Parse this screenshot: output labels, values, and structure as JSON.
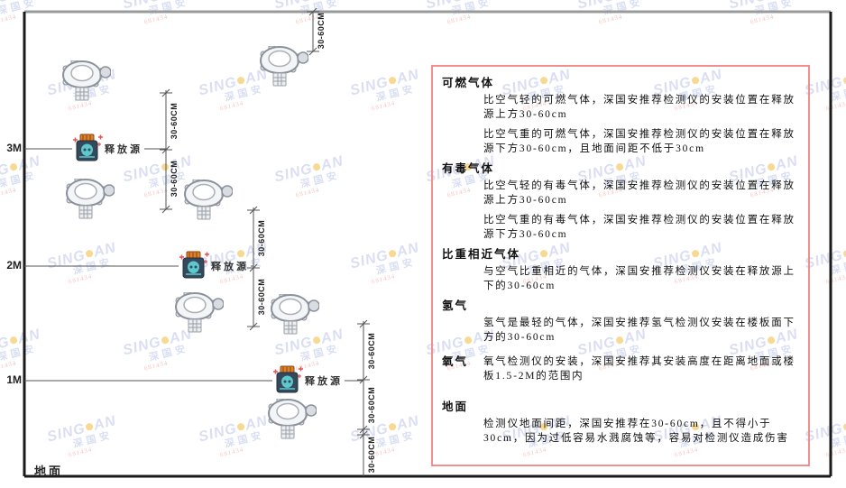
{
  "watermark": {
    "brand_left": "SING",
    "brand_right": "AN",
    "cn": "深国安",
    "code": "681434"
  },
  "diagram": {
    "height_markers": [
      "3M",
      "2M",
      "1M"
    ],
    "ground_label": "地面",
    "release_source_label": "释放源",
    "dimension_label": "30-60CM",
    "colors": {
      "frame": "#1a1a1a",
      "ceiling": "#9a9a9a",
      "thin_line": "#555555",
      "source_body": "#34495c",
      "source_cap": "#df7f2e",
      "source_blob": "#5ec8cc",
      "sparkle": "#e25555",
      "detector_outline": "#8b929c",
      "detector_fill": "#f4f5f7"
    }
  },
  "panel": {
    "border_color": "#f0908e",
    "sections": [
      {
        "heading": "可燃气体",
        "inline": false,
        "paragraphs": [
          "比空气轻的可燃气体，深国安推荐检测仪的安装位置在释放源上方30-60cm",
          "比空气重的可燃气体，深国安推荐检测仪的安装位置在释放源下方30-60cm，且地面间距不低于30cm"
        ]
      },
      {
        "heading": "有毒气体",
        "inline": false,
        "paragraphs": [
          "比空气轻的有毒气体，深国安推荐检测仪的安装位置在释放源上方30-60cm",
          "比空气重的有毒气体，深国安推荐检测仪的安装位置在释放源下方30-60cm"
        ]
      },
      {
        "heading": "比重相近气体",
        "inline": false,
        "paragraphs": [
          "与空气比重相近的气体，深国安推荐检测仪安装在释放源上下的30-60cm"
        ]
      },
      {
        "heading": "氢气",
        "inline": false,
        "paragraphs": [
          "氢气是最轻的气体，深国安推荐氢气检测仪安装在楼板面下方的30-60cm"
        ]
      },
      {
        "heading": "氧气",
        "inline": true,
        "paragraphs": [
          "氧气检测仪的安装，深国安推荐其安装高度在距离地面或楼板1.5-2M的范围内"
        ]
      },
      {
        "heading": "地面",
        "inline": false,
        "gap_before": true,
        "paragraphs": [
          "检测仪地面间距，深国安推荐在30-60cm，且不得小于30cm，因为过低容易水溅腐蚀等，容易对检测仪造成伤害"
        ]
      }
    ]
  }
}
